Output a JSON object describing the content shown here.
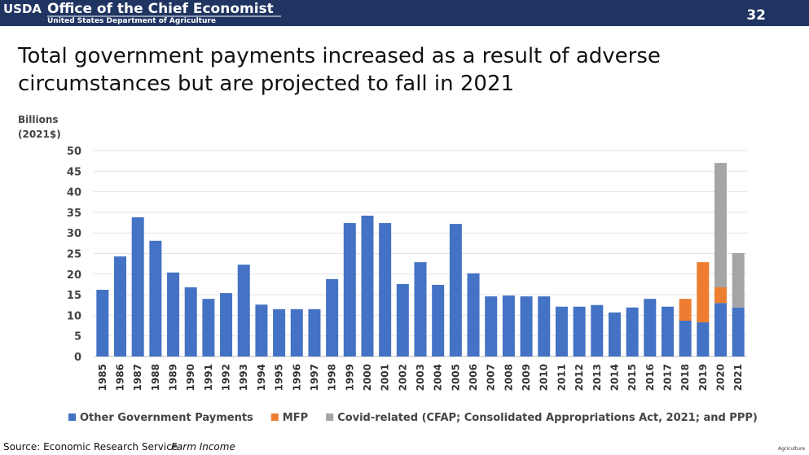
{
  "header": {
    "logo": "USDA",
    "office": "Office of the Chief Economist",
    "department": "United States Department of Agriculture",
    "page_number": "32"
  },
  "chart_data": {
    "type": "bar",
    "stacked": true,
    "title": "Total government payments increased as a result of adverse circumstances but are projected to fall in 2021",
    "ylabel": "Billions (2021$)",
    "categories": [
      "1985",
      "1986",
      "1987",
      "1988",
      "1989",
      "1990",
      "1991",
      "1992",
      "1993",
      "1994",
      "1995",
      "1996",
      "1997",
      "1998",
      "1999",
      "2000",
      "2001",
      "2002",
      "2003",
      "2004",
      "2005",
      "2006",
      "2007",
      "2008",
      "2009",
      "2010",
      "2011",
      "2012",
      "2013",
      "2014",
      "2015",
      "2016",
      "2017",
      "2018",
      "2019",
      "2020",
      "2021"
    ],
    "series": [
      {
        "name": "Other Government Payments",
        "color": "#4472c4",
        "values": [
          16.2,
          24.3,
          33.8,
          28.1,
          20.4,
          16.8,
          14.0,
          15.4,
          22.3,
          12.6,
          11.5,
          11.5,
          11.5,
          18.8,
          32.4,
          34.2,
          32.4,
          17.6,
          22.9,
          17.4,
          32.2,
          20.2,
          14.6,
          14.8,
          14.6,
          14.6,
          12.1,
          12.1,
          12.5,
          10.7,
          11.9,
          14.0,
          12.1,
          8.7,
          8.3,
          13.0,
          11.9
        ]
      },
      {
        "name": "MFP",
        "color": "#ed7d31",
        "values": [
          null,
          null,
          null,
          null,
          null,
          null,
          null,
          null,
          null,
          null,
          null,
          null,
          null,
          null,
          null,
          null,
          null,
          null,
          null,
          null,
          null,
          null,
          null,
          null,
          null,
          null,
          null,
          null,
          null,
          null,
          null,
          null,
          null,
          5.3,
          14.6,
          3.8,
          null
        ]
      },
      {
        "name": "Covid-related (CFAP; Consolidated Appropriations Act, 2021; and PPP)",
        "color": "#a5a5a5",
        "values": [
          null,
          null,
          null,
          null,
          null,
          null,
          null,
          null,
          null,
          null,
          null,
          null,
          null,
          null,
          null,
          null,
          null,
          null,
          null,
          null,
          null,
          null,
          null,
          null,
          null,
          null,
          null,
          null,
          null,
          null,
          null,
          null,
          null,
          null,
          null,
          30.2,
          13.2
        ]
      }
    ],
    "ylim": [
      0,
      50
    ],
    "yticks": [
      0,
      5,
      10,
      15,
      20,
      25,
      30,
      35,
      40,
      45,
      50
    ],
    "grid": true,
    "legend": "bottom"
  },
  "footer": {
    "source": "Source: Economic Research Service",
    "source_title": "Farm Income",
    "corner": "Agriculture"
  }
}
